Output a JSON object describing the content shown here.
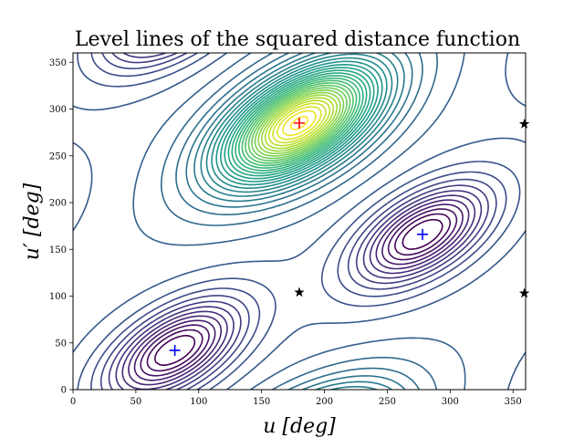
{
  "chart_data": {
    "type": "contour",
    "title": "Level lines of the squared distance function",
    "xlabel": "u [deg]",
    "ylabel": "u′ [deg]",
    "xlim": [
      0,
      360
    ],
    "ylim": [
      0,
      360
    ],
    "xticks": [
      "0",
      "50",
      "100",
      "150",
      "200",
      "250",
      "300",
      "350"
    ],
    "yticks": [
      "0",
      "50",
      "100",
      "150",
      "200",
      "250",
      "300",
      "350"
    ],
    "xtick_values": [
      0,
      50,
      100,
      150,
      200,
      250,
      300,
      350
    ],
    "ytick_values": [
      0,
      50,
      100,
      150,
      200,
      250,
      300,
      350
    ],
    "colormap": "viridis",
    "grid": false,
    "markers": [
      {
        "name": "maximum",
        "symbol": "plus",
        "color": "#ff0000",
        "points": [
          [
            180,
            285
          ]
        ]
      },
      {
        "name": "minima",
        "symbol": "plus",
        "color": "#0000ff",
        "points": [
          [
            81,
            42
          ],
          [
            278,
            166
          ]
        ]
      },
      {
        "name": "saddles",
        "symbol": "star",
        "color": "#000000",
        "points": [
          [
            180,
            104
          ],
          [
            359,
            103
          ],
          [
            359,
            284
          ]
        ]
      }
    ]
  }
}
